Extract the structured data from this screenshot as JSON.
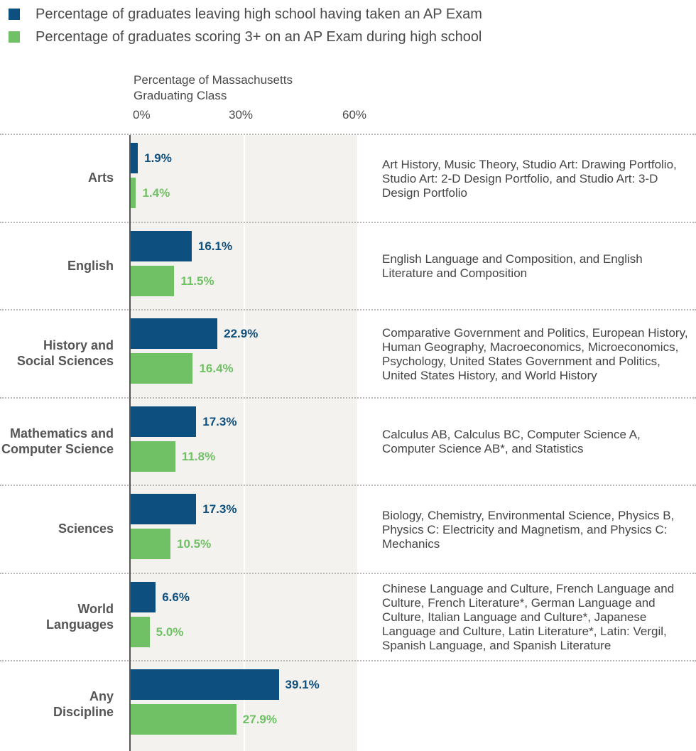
{
  "legend": [
    {
      "label": "Percentage of graduates leaving high school having taken an AP Exam",
      "color": "#0d4f7e"
    },
    {
      "label": "Percentage of graduates scoring 3+ on an AP Exam during high school",
      "color": "#70c165"
    }
  ],
  "axis_title": "Percentage of Massachusetts\nGraduating Class",
  "chart_data": {
    "type": "bar",
    "orientation": "horizontal",
    "xlim": [
      0,
      60
    ],
    "ticks": [
      "0%",
      "30%",
      "60%"
    ],
    "tick_values": [
      0,
      30,
      60
    ],
    "grid": true,
    "categories": [
      {
        "label": "Arts",
        "description": "Art History, Music Theory, Studio Art: Drawing Portfolio, Studio Art: 2-D Design Portfolio, and Studio Art: 3-D Design Portfolio"
      },
      {
        "label": "English",
        "description": "English Language and Composition, and English Literature and Composition"
      },
      {
        "label": "History and\nSocial Sciences",
        "description": "Comparative Government and Politics, European History, Human Geography, Macroeconomics, Microeconomics, Psychology, United States Government and Politics, United States History, and World History"
      },
      {
        "label": "Mathematics and\nComputer Science",
        "description": "Calculus AB, Calculus BC, Computer Science A, Computer Science AB*, and Statistics"
      },
      {
        "label": "Sciences",
        "description": "Biology, Chemistry, Environmental Science, Physics B, Physics C: Electricity and Magnetism, and Physics C: Mechanics"
      },
      {
        "label": "World\nLanguages",
        "description": "Chinese Language and Culture, French Language and Culture, French Literature*, German Language and Culture, Italian Language and Culture*, Japanese Language and Culture, Latin Literature*, Latin: Vergil, Spanish Language, and Spanish Literature"
      },
      {
        "label": "Any\nDiscipline",
        "description": ""
      }
    ],
    "series": [
      {
        "name": "Percentage of graduates leaving high school having taken an AP Exam",
        "color": "#0d4f7e",
        "values": [
          1.9,
          16.1,
          22.9,
          17.3,
          17.3,
          6.6,
          39.1
        ],
        "labels": [
          "1.9%",
          "16.1%",
          "22.9%",
          "17.3%",
          "17.3%",
          "6.6%",
          "39.1%"
        ]
      },
      {
        "name": "Percentage of graduates scoring 3+ on an AP Exam during high school",
        "color": "#70c165",
        "values": [
          1.4,
          11.5,
          16.4,
          11.8,
          10.5,
          5.0,
          27.9
        ],
        "labels": [
          "1.4%",
          "11.5%",
          "16.4%",
          "11.8%",
          "10.5%",
          "5.0%",
          "27.9%"
        ]
      }
    ]
  }
}
